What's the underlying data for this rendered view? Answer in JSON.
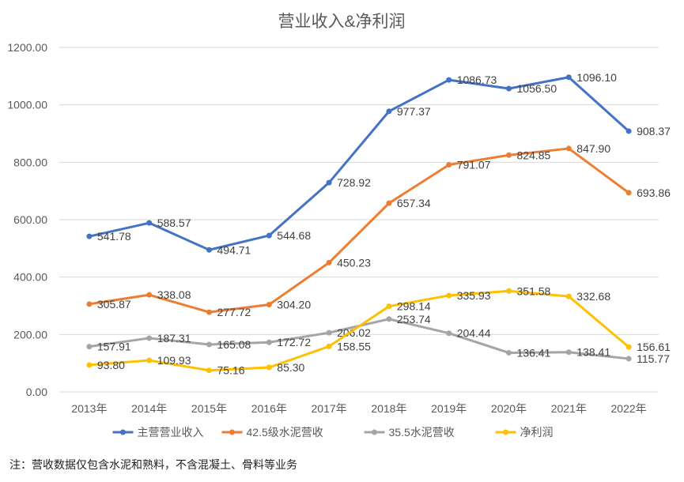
{
  "chart_data": {
    "type": "line",
    "title": "营业收入&净利润",
    "xlabel": "",
    "ylabel": "",
    "ylim": [
      0,
      1200
    ],
    "yticks": [
      "0.00",
      "200.00",
      "400.00",
      "600.00",
      "800.00",
      "1000.00",
      "1200.00"
    ],
    "categories": [
      "2013年",
      "2014年",
      "2015年",
      "2016年",
      "2017年",
      "2018年",
      "2019年",
      "2020年",
      "2021年",
      "2022年"
    ],
    "grid": true,
    "legend": "bottom",
    "series": [
      {
        "name": "主营营业收入",
        "color": "#4472C4",
        "values": [
          541.78,
          588.57,
          494.71,
          544.68,
          728.92,
          977.37,
          1086.73,
          1056.5,
          1096.1,
          908.37
        ],
        "labels": [
          "541.78",
          "588.57",
          "494.71",
          "544.68",
          "728.92",
          "977.37",
          "1086.73",
          "1056.50",
          "1096.10",
          "908.37"
        ]
      },
      {
        "name": "42.5级水泥营收",
        "color": "#ED7D31",
        "values": [
          305.87,
          338.08,
          277.72,
          304.2,
          450.23,
          657.34,
          791.07,
          824.85,
          847.9,
          693.86
        ],
        "labels": [
          "305.87",
          "338.08",
          "277.72",
          "304.20",
          "450.23",
          "657.34",
          "791.07",
          "824.85",
          "847.90",
          "693.86"
        ]
      },
      {
        "name": "35.5水泥营收",
        "color": "#A5A5A5",
        "values": [
          157.91,
          187.31,
          165.08,
          172.72,
          206.02,
          253.74,
          204.44,
          136.41,
          138.41,
          115.77
        ],
        "labels": [
          "157.91",
          "187.31",
          "165.08",
          "172.72",
          "206.02",
          "253.74",
          "204.44",
          "136.41",
          "138.41",
          "115.77"
        ]
      },
      {
        "name": "净利润",
        "color": "#FFC000",
        "values": [
          93.8,
          109.93,
          75.16,
          85.3,
          158.55,
          298.14,
          335.93,
          351.58,
          332.68,
          156.61
        ],
        "labels": [
          "93.80",
          "109.93",
          "75.16",
          "85.30",
          "158.55",
          "298.14",
          "335.93",
          "351.58",
          "332.68",
          "156.61"
        ]
      }
    ]
  },
  "note": "注：营收数据仅包含水泥和熟料，不含混凝土、骨料等业务"
}
